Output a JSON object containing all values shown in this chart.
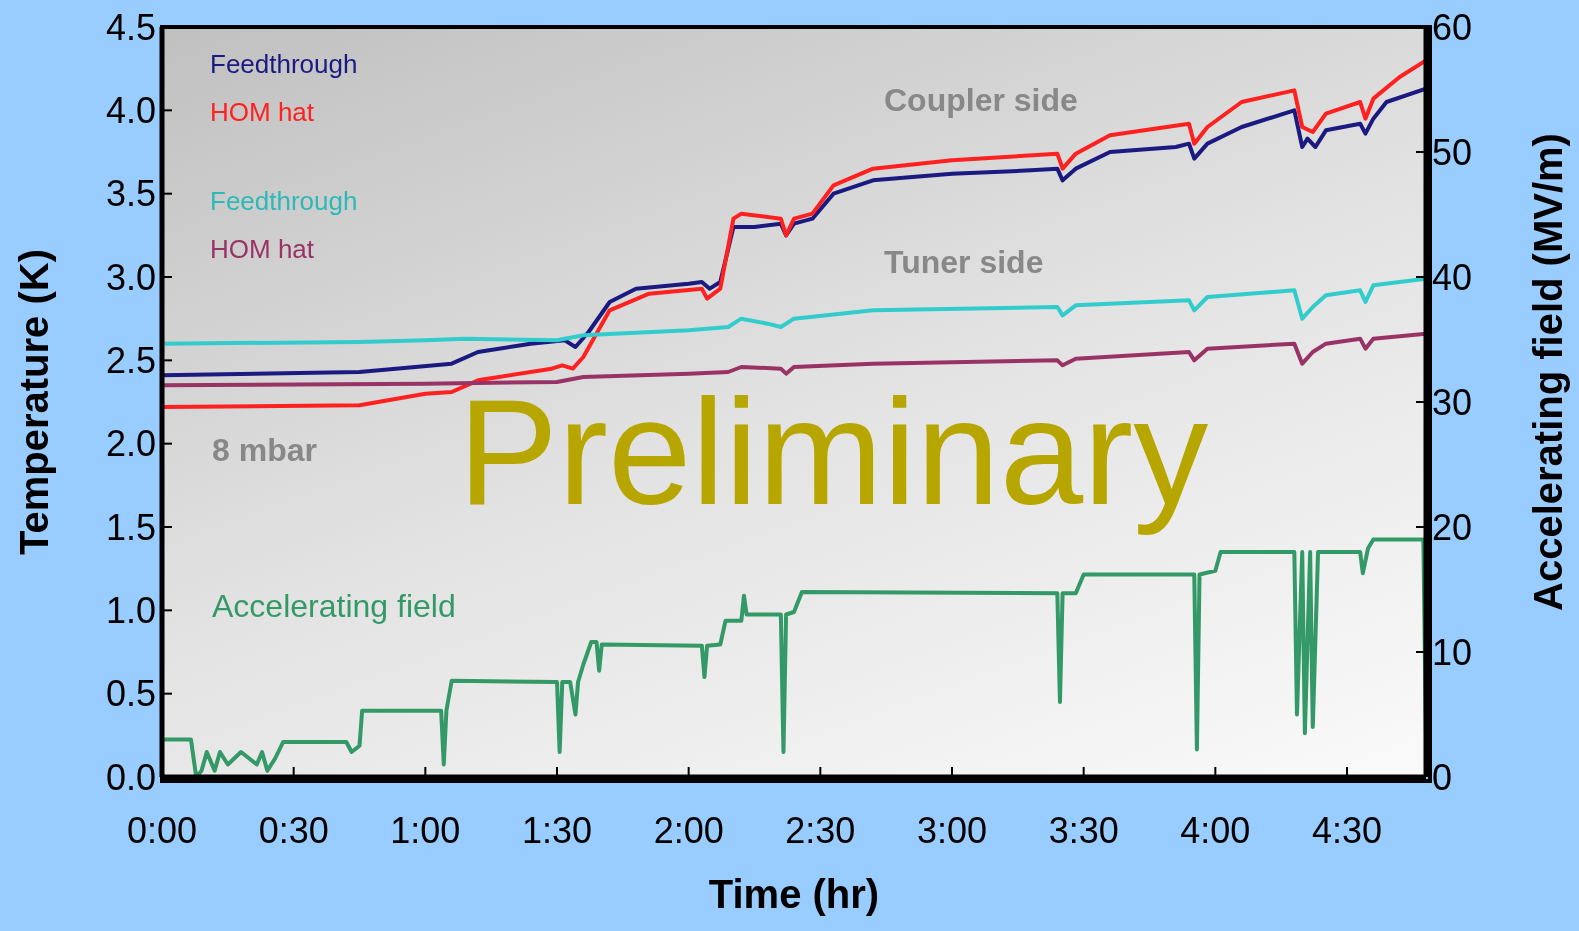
{
  "chart_data": {
    "type": "line",
    "xlabel": "Time (hr)",
    "ylabel": "Temperature (K)",
    "y2label": "Accelerating field (MV/m)",
    "xlim": [
      0,
      4.8
    ],
    "xticks": [
      {
        "value": 0,
        "label": "0:00"
      },
      {
        "value": 0.5,
        "label": "0:30"
      },
      {
        "value": 1,
        "label": "1:00"
      },
      {
        "value": 1.5,
        "label": "1:30"
      },
      {
        "value": 2,
        "label": "2:00"
      },
      {
        "value": 2.5,
        "label": "2:30"
      },
      {
        "value": 3,
        "label": "3:00"
      },
      {
        "value": 3.5,
        "label": "3:30"
      },
      {
        "value": 4,
        "label": "4:00"
      },
      {
        "value": 4.5,
        "label": "4:30"
      }
    ],
    "ylim": [
      0,
      4.5
    ],
    "yticks": [
      {
        "value": 0,
        "label": "0.0"
      },
      {
        "value": 0.5,
        "label": "0.5"
      },
      {
        "value": 1,
        "label": "1.0"
      },
      {
        "value": 1.5,
        "label": "1.5"
      },
      {
        "value": 2,
        "label": "2.0"
      },
      {
        "value": 2.5,
        "label": "2.5"
      },
      {
        "value": 3,
        "label": "3.0"
      },
      {
        "value": 3.5,
        "label": "3.5"
      },
      {
        "value": 4,
        "label": "4.0"
      },
      {
        "value": 4.5,
        "label": "4.5"
      }
    ],
    "y2lim": [
      0,
      60
    ],
    "y2ticks": [
      0,
      10,
      20,
      30,
      40,
      50,
      60
    ],
    "grid": false,
    "legend": false,
    "marker": "none",
    "line_style": "solid",
    "annotations": [
      "Coupler side",
      "Tuner side",
      "8 mbar",
      "Preliminary"
    ],
    "series": [
      {
        "name": "Feedthrough",
        "color": "#1a1a80",
        "x": [
          0,
          0.75,
          1.1,
          1.2,
          1.4,
          1.53,
          1.57,
          1.62,
          1.7,
          1.8,
          2.0,
          2.05,
          2.08,
          2.12,
          2.17,
          2.25,
          2.35,
          2.37,
          2.4,
          2.47,
          2.55,
          2.7,
          3.0,
          3.3,
          3.4,
          3.42,
          3.47,
          3.6,
          3.85,
          3.9,
          3.92,
          3.97,
          4.1,
          4.3,
          4.33,
          4.35,
          4.38,
          4.42,
          4.55,
          4.57,
          4.6,
          4.65,
          4.8
        ],
        "values": [
          2.41,
          2.43,
          2.48,
          2.55,
          2.6,
          2.62,
          2.58,
          2.67,
          2.85,
          2.93,
          2.96,
          2.97,
          2.93,
          2.97,
          3.3,
          3.3,
          3.32,
          3.25,
          3.32,
          3.35,
          3.5,
          3.58,
          3.62,
          3.64,
          3.65,
          3.58,
          3.65,
          3.75,
          3.78,
          3.8,
          3.71,
          3.8,
          3.9,
          4.0,
          3.78,
          3.83,
          3.78,
          3.88,
          3.92,
          3.86,
          3.95,
          4.05,
          4.13
        ]
      },
      {
        "name": "HOM hat",
        "color": "#ff2020",
        "x": [
          0,
          0.75,
          1.0,
          1.1,
          1.2,
          1.48,
          1.52,
          1.56,
          1.6,
          1.7,
          1.85,
          2.05,
          2.07,
          2.12,
          2.17,
          2.2,
          2.35,
          2.37,
          2.4,
          2.47,
          2.55,
          2.7,
          3.0,
          3.4,
          3.42,
          3.47,
          3.6,
          3.9,
          3.92,
          3.97,
          4.1,
          4.3,
          4.33,
          4.37,
          4.42,
          4.55,
          4.57,
          4.6,
          4.7,
          4.8
        ],
        "values": [
          2.22,
          2.23,
          2.3,
          2.31,
          2.38,
          2.45,
          2.47,
          2.45,
          2.52,
          2.8,
          2.9,
          2.93,
          2.87,
          2.93,
          3.35,
          3.38,
          3.35,
          3.25,
          3.35,
          3.38,
          3.55,
          3.65,
          3.7,
          3.74,
          3.65,
          3.74,
          3.85,
          3.92,
          3.8,
          3.9,
          4.05,
          4.12,
          3.9,
          3.87,
          3.98,
          4.05,
          3.95,
          4.07,
          4.2,
          4.3
        ]
      },
      {
        "name": "Feedthrough",
        "color": "#33cccc",
        "x": [
          0,
          0.75,
          1.0,
          1.15,
          1.5,
          1.6,
          2.0,
          2.15,
          2.2,
          2.3,
          2.35,
          2.4,
          2.7,
          3.4,
          3.42,
          3.47,
          3.9,
          3.92,
          3.97,
          4.3,
          4.33,
          4.37,
          4.42,
          4.55,
          4.57,
          4.6,
          4.8
        ],
        "values": [
          2.6,
          2.61,
          2.62,
          2.63,
          2.62,
          2.65,
          2.68,
          2.7,
          2.75,
          2.72,
          2.7,
          2.75,
          2.8,
          2.82,
          2.77,
          2.83,
          2.86,
          2.8,
          2.88,
          2.92,
          2.75,
          2.82,
          2.89,
          2.92,
          2.85,
          2.95,
          2.99
        ]
      },
      {
        "name": "HOM hat",
        "color": "#993366",
        "x": [
          0,
          1.0,
          1.5,
          1.6,
          2.0,
          2.15,
          2.2,
          2.35,
          2.37,
          2.4,
          2.7,
          3.4,
          3.42,
          3.47,
          3.9,
          3.92,
          3.97,
          4.3,
          4.33,
          4.37,
          4.42,
          4.55,
          4.57,
          4.6,
          4.8
        ],
        "values": [
          2.35,
          2.36,
          2.37,
          2.4,
          2.42,
          2.43,
          2.46,
          2.45,
          2.42,
          2.46,
          2.48,
          2.5,
          2.47,
          2.51,
          2.55,
          2.5,
          2.57,
          2.6,
          2.48,
          2.55,
          2.6,
          2.63,
          2.57,
          2.63,
          2.66
        ]
      },
      {
        "name": "Accelerating field",
        "color": "#339966",
        "axis": "y2",
        "x": [
          0,
          0.11,
          0.13,
          0.15,
          0.17,
          0.2,
          0.22,
          0.25,
          0.3,
          0.33,
          0.36,
          0.38,
          0.4,
          0.43,
          0.46,
          0.7,
          0.72,
          0.75,
          0.76,
          1.06,
          1.07,
          1.08,
          1.1,
          1.5,
          1.51,
          1.52,
          1.55,
          1.57,
          1.58,
          1.6,
          1.63,
          1.65,
          1.66,
          1.67,
          2.05,
          2.06,
          2.07,
          2.12,
          2.14,
          2.2,
          2.21,
          2.22,
          2.35,
          2.36,
          2.37,
          2.4,
          2.43,
          3.4,
          3.41,
          3.42,
          3.47,
          3.5,
          3.92,
          3.93,
          3.94,
          4.0,
          4.02,
          4.3,
          4.31,
          4.33,
          4.34,
          4.36,
          4.37,
          4.39,
          4.55,
          4.56,
          4.58,
          4.6,
          4.79,
          4.8
        ],
        "values": [
          3,
          3,
          0,
          0.5,
          2,
          0.5,
          2,
          1,
          2,
          1.5,
          1,
          2,
          0.5,
          1.5,
          2.8,
          2.8,
          2,
          2.5,
          5.3,
          5.3,
          1,
          5.3,
          7.7,
          7.6,
          2,
          7.6,
          7.6,
          5,
          7.6,
          9,
          10.8,
          10.8,
          8.5,
          10.6,
          10.5,
          8,
          10.5,
          10.6,
          12.5,
          12.5,
          14.5,
          13,
          13,
          2,
          13,
          13.2,
          14.8,
          14.7,
          6,
          14.7,
          14.7,
          16.2,
          16.2,
          2.2,
          16.2,
          16.5,
          18,
          18,
          5,
          18,
          3.5,
          18,
          4,
          18,
          18,
          16.3,
          18.3,
          19,
          19,
          3
        ]
      }
    ]
  }
}
